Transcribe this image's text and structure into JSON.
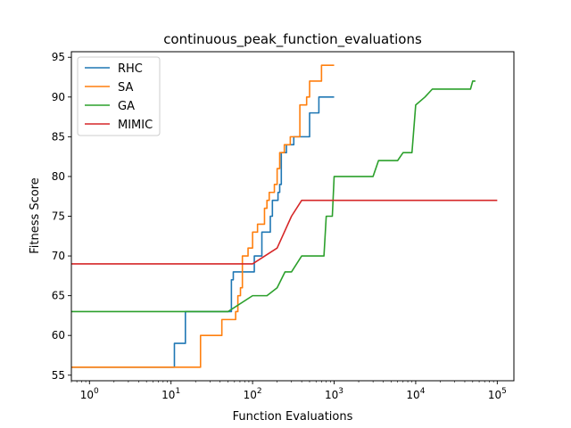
{
  "chart_data": {
    "type": "line",
    "title": "continuous_peak_function_evaluations",
    "xlabel": "Function Evaluations",
    "ylabel": "Fitness Score",
    "xscale": "log",
    "xlim": [
      0.6,
      160000
    ],
    "ylim": [
      54.3,
      95.7
    ],
    "x_ticks": [
      1,
      10,
      100,
      1000,
      10000,
      100000
    ],
    "x_tick_labels": [
      {
        "base": "10",
        "exp": "0"
      },
      {
        "base": "10",
        "exp": "1"
      },
      {
        "base": "10",
        "exp": "2"
      },
      {
        "base": "10",
        "exp": "3"
      },
      {
        "base": "10",
        "exp": "4"
      },
      {
        "base": "10",
        "exp": "5"
      }
    ],
    "y_ticks": [
      55,
      60,
      65,
      70,
      75,
      80,
      85,
      90,
      95
    ],
    "y_tick_labels": [
      "55",
      "60",
      "65",
      "70",
      "75",
      "80",
      "85",
      "90",
      "95"
    ],
    "grid": false,
    "legend_position": "top-left",
    "series": [
      {
        "name": "RHC",
        "color": "#1f77b4",
        "step": true,
        "points": [
          [
            0.6,
            56
          ],
          [
            10,
            56
          ],
          [
            11,
            59
          ],
          [
            15,
            63
          ],
          [
            52,
            63
          ],
          [
            55,
            67
          ],
          [
            58,
            68
          ],
          [
            100,
            68
          ],
          [
            105,
            70
          ],
          [
            130,
            73
          ],
          [
            165,
            75
          ],
          [
            175,
            77
          ],
          [
            205,
            78
          ],
          [
            215,
            79
          ],
          [
            225,
            83
          ],
          [
            260,
            84
          ],
          [
            320,
            85
          ],
          [
            500,
            88
          ],
          [
            650,
            90
          ],
          [
            1000,
            90
          ]
        ]
      },
      {
        "name": "SA",
        "color": "#ff7f0e",
        "step": true,
        "points": [
          [
            0.6,
            56
          ],
          [
            22,
            56
          ],
          [
            23,
            60
          ],
          [
            42,
            62
          ],
          [
            62,
            63
          ],
          [
            66,
            65
          ],
          [
            71,
            66
          ],
          [
            75,
            70
          ],
          [
            88,
            71
          ],
          [
            100,
            73
          ],
          [
            115,
            74
          ],
          [
            140,
            76
          ],
          [
            150,
            77
          ],
          [
            160,
            78
          ],
          [
            185,
            79
          ],
          [
            200,
            81
          ],
          [
            215,
            83
          ],
          [
            245,
            84
          ],
          [
            290,
            85
          ],
          [
            380,
            89
          ],
          [
            460,
            90
          ],
          [
            500,
            92
          ],
          [
            700,
            94
          ],
          [
            1000,
            94
          ]
        ]
      },
      {
        "name": "GA",
        "color": "#2ca02c",
        "step": false,
        "points": [
          [
            0.6,
            63
          ],
          [
            50,
            63
          ],
          [
            100,
            65
          ],
          [
            150,
            65
          ],
          [
            200,
            66
          ],
          [
            250,
            68
          ],
          [
            300,
            68
          ],
          [
            400,
            70
          ],
          [
            750,
            70
          ],
          [
            800,
            75
          ],
          [
            950,
            75
          ],
          [
            1000,
            80
          ],
          [
            3000,
            80
          ],
          [
            3500,
            82
          ],
          [
            6000,
            82
          ],
          [
            7000,
            83
          ],
          [
            9000,
            83
          ],
          [
            10000,
            89
          ],
          [
            13000,
            90
          ],
          [
            16000,
            91
          ],
          [
            47000,
            91
          ],
          [
            50000,
            92
          ],
          [
            54000,
            92
          ]
        ]
      },
      {
        "name": "MIMIC",
        "color": "#d62728",
        "step": false,
        "points": [
          [
            0.6,
            69
          ],
          [
            100,
            69
          ],
          [
            200,
            71
          ],
          [
            300,
            75
          ],
          [
            400,
            77
          ],
          [
            100000,
            77
          ]
        ]
      }
    ]
  }
}
